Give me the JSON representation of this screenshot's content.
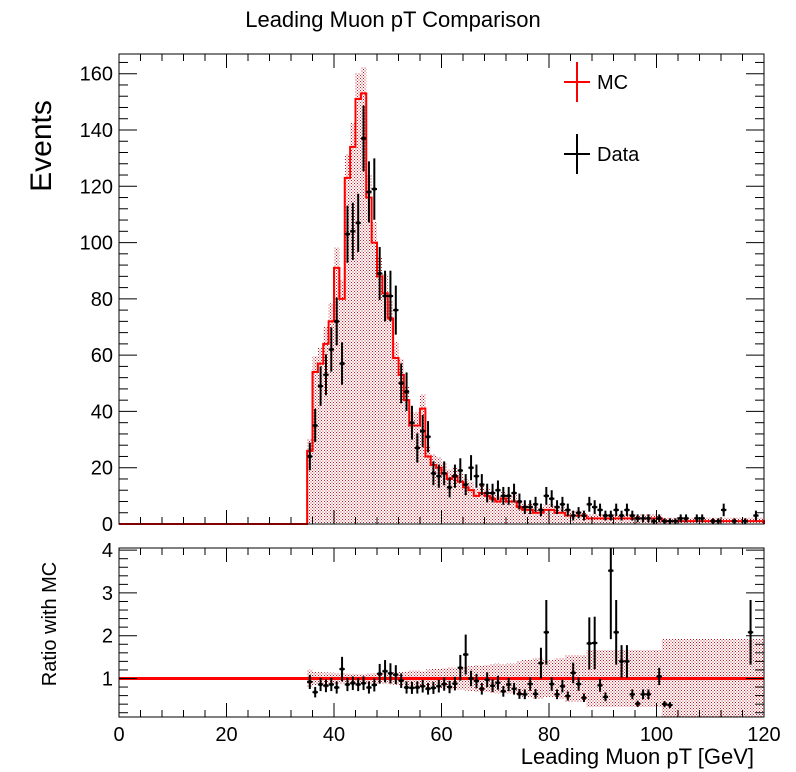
{
  "colors": {
    "mc_line": "#ff0000",
    "mc_band": "#c8141e",
    "data": "#000000",
    "axis": "#000000"
  },
  "chart_data": [
    {
      "type": "histogram",
      "title": "Leading Muon pT Comparison",
      "ylabel": "Events",
      "xlim": [
        0,
        120
      ],
      "ylim": [
        0,
        167
      ],
      "x_ticks": [
        0,
        20,
        40,
        60,
        80,
        100,
        120
      ],
      "y_ticks": [
        0,
        20,
        40,
        60,
        80,
        100,
        120,
        140,
        160
      ],
      "y_tick_labels": [
        "0",
        "20",
        "40",
        "60",
        "80",
        "100",
        "120",
        "140",
        "160"
      ],
      "legend_placement": "top-right",
      "legend": [
        {
          "label": "MC",
          "style": "line"
        },
        {
          "label": "Data",
          "style": "points"
        }
      ],
      "bin_width": 1,
      "bins_start": 35,
      "mc_values": [
        26,
        54,
        57,
        64,
        72,
        91,
        80,
        123,
        134,
        151,
        153,
        116,
        100,
        88,
        82,
        73,
        59,
        53,
        44,
        35,
        35,
        41,
        24,
        21,
        20,
        18,
        16,
        17,
        15,
        13,
        12,
        10,
        11,
        10,
        9,
        8,
        9,
        8,
        8,
        6,
        5,
        5,
        4,
        4,
        5,
        5,
        4,
        4,
        3,
        3,
        3,
        3,
        2,
        2,
        2,
        2,
        2,
        2,
        2,
        2,
        2,
        2,
        2,
        2,
        2,
        2,
        1,
        1,
        1,
        1,
        1,
        1,
        1,
        1,
        1,
        1,
        1,
        1,
        1,
        1,
        1,
        1,
        1,
        1,
        1
      ],
      "data_points": [
        [
          35.5,
          24
        ],
        [
          36.5,
          35
        ],
        [
          37.5,
          49
        ],
        [
          38.5,
          53
        ],
        [
          39.5,
          62
        ],
        [
          40.5,
          72
        ],
        [
          41.5,
          57
        ],
        [
          42.5,
          103
        ],
        [
          43.5,
          104
        ],
        [
          44.5,
          107
        ],
        [
          45.5,
          137
        ],
        [
          46.5,
          118
        ],
        [
          47.5,
          119
        ],
        [
          48.5,
          89
        ],
        [
          49.5,
          81
        ],
        [
          50.5,
          81
        ],
        [
          51.5,
          76
        ],
        [
          52.5,
          50
        ],
        [
          53.5,
          47
        ],
        [
          54.5,
          36
        ],
        [
          55.5,
          27
        ],
        [
          56.5,
          33
        ],
        [
          57.5,
          31
        ],
        [
          58.5,
          18
        ],
        [
          59.5,
          17
        ],
        [
          60.5,
          18
        ],
        [
          61.5,
          13
        ],
        [
          62.5,
          17
        ],
        [
          63.5,
          19
        ],
        [
          64.5,
          14
        ],
        [
          65.5,
          20
        ],
        [
          66.5,
          17
        ],
        [
          67.5,
          14
        ],
        [
          68.5,
          11
        ],
        [
          69.5,
          11
        ],
        [
          70.5,
          12
        ],
        [
          71.5,
          10
        ],
        [
          72.5,
          10
        ],
        [
          73.5,
          11
        ],
        [
          74.5,
          8
        ],
        [
          75.5,
          6
        ],
        [
          76.5,
          6
        ],
        [
          77.5,
          7
        ],
        [
          78.5,
          5
        ],
        [
          79.5,
          10
        ],
        [
          80.5,
          9
        ],
        [
          81.5,
          6
        ],
        [
          82.5,
          7
        ],
        [
          83.5,
          5
        ],
        [
          84.5,
          3
        ],
        [
          85.5,
          4
        ],
        [
          86.5,
          3
        ],
        [
          87.5,
          7
        ],
        [
          88.5,
          6
        ],
        [
          89.5,
          5
        ],
        [
          90.5,
          3
        ],
        [
          91.5,
          3
        ],
        [
          92.5,
          5
        ],
        [
          93.5,
          3
        ],
        [
          94.5,
          5
        ],
        [
          95.5,
          3
        ],
        [
          96.5,
          2
        ],
        [
          97.5,
          2
        ],
        [
          98.5,
          2
        ],
        [
          99.5,
          1
        ],
        [
          100.5,
          2
        ],
        [
          101.5,
          1
        ],
        [
          102.5,
          1
        ],
        [
          103.5,
          1
        ],
        [
          104.5,
          2
        ],
        [
          105.5,
          2
        ],
        [
          107.5,
          2
        ],
        [
          108.5,
          2
        ],
        [
          110.5,
          1
        ],
        [
          111.5,
          1
        ],
        [
          112.5,
          5
        ],
        [
          114.5,
          1
        ],
        [
          116.5,
          1
        ],
        [
          118.5,
          3
        ]
      ]
    },
    {
      "type": "ratio",
      "xlabel": "Leading Muon pT [GeV]",
      "ylabel": "Ratio with MC",
      "xlim": [
        0,
        120
      ],
      "ylim": [
        0.1,
        4.05
      ],
      "x_ticks": [
        0,
        20,
        40,
        60,
        80,
        100,
        120
      ],
      "x_tick_labels": [
        "0",
        "20",
        "40",
        "60",
        "80",
        "100",
        "120"
      ],
      "y_ticks": [
        1,
        2,
        3,
        4
      ],
      "y_tick_labels": [
        "1",
        "2",
        "3",
        "4"
      ],
      "reference_line": 1,
      "ratio_points": [
        [
          35.5,
          0.92
        ],
        [
          36.5,
          0.68
        ],
        [
          37.5,
          0.86
        ],
        [
          38.5,
          0.83
        ],
        [
          39.5,
          0.86
        ],
        [
          40.5,
          0.79
        ],
        [
          41.5,
          1.22
        ],
        [
          42.5,
          0.86
        ],
        [
          43.5,
          0.89
        ],
        [
          44.5,
          0.86
        ],
        [
          45.5,
          0.89
        ],
        [
          46.5,
          0.79
        ],
        [
          47.5,
          0.85
        ],
        [
          48.5,
          1.11
        ],
        [
          49.5,
          1.17
        ],
        [
          50.5,
          1.12
        ],
        [
          51.5,
          1.09
        ],
        [
          52.5,
          0.95
        ],
        [
          53.5,
          0.79
        ],
        [
          54.5,
          0.78
        ],
        [
          55.5,
          0.79
        ],
        [
          56.5,
          0.82
        ],
        [
          57.5,
          0.76
        ],
        [
          58.5,
          0.78
        ],
        [
          59.5,
          0.82
        ],
        [
          60.5,
          0.87
        ],
        [
          61.5,
          0.8
        ],
        [
          62.5,
          0.88
        ],
        [
          63.5,
          1.25
        ],
        [
          64.5,
          1.56
        ],
        [
          65.5,
          1.0
        ],
        [
          66.5,
          0.94
        ],
        [
          67.5,
          0.76
        ],
        [
          68.5,
          0.97
        ],
        [
          69.5,
          0.83
        ],
        [
          70.5,
          0.9
        ],
        [
          71.5,
          0.7
        ],
        [
          72.5,
          0.86
        ],
        [
          73.5,
          0.76
        ],
        [
          74.5,
          0.64
        ],
        [
          75.5,
          0.63
        ],
        [
          76.5,
          0.87
        ],
        [
          77.5,
          0.64
        ],
        [
          78.5,
          1.36
        ],
        [
          79.5,
          2.08
        ],
        [
          80.5,
          0.87
        ],
        [
          81.5,
          0.63
        ],
        [
          82.5,
          0.82
        ],
        [
          83.5,
          0.59
        ],
        [
          84.5,
          1.13
        ],
        [
          85.5,
          0.87
        ],
        [
          86.5,
          0.55
        ],
        [
          87.5,
          1.82
        ],
        [
          88.5,
          1.83
        ],
        [
          89.5,
          0.84
        ],
        [
          90.5,
          0.57
        ],
        [
          91.5,
          3.52
        ],
        [
          92.5,
          2.08
        ],
        [
          93.5,
          1.4
        ],
        [
          94.5,
          1.4
        ],
        [
          95.5,
          0.63
        ],
        [
          96.5,
          0.41
        ],
        [
          97.5,
          0.63
        ],
        [
          98.5,
          0.63
        ],
        [
          100.5,
          1.05
        ],
        [
          101.5,
          0.4
        ],
        [
          102.5,
          0.38
        ],
        [
          117.5,
          2.08
        ]
      ]
    }
  ]
}
